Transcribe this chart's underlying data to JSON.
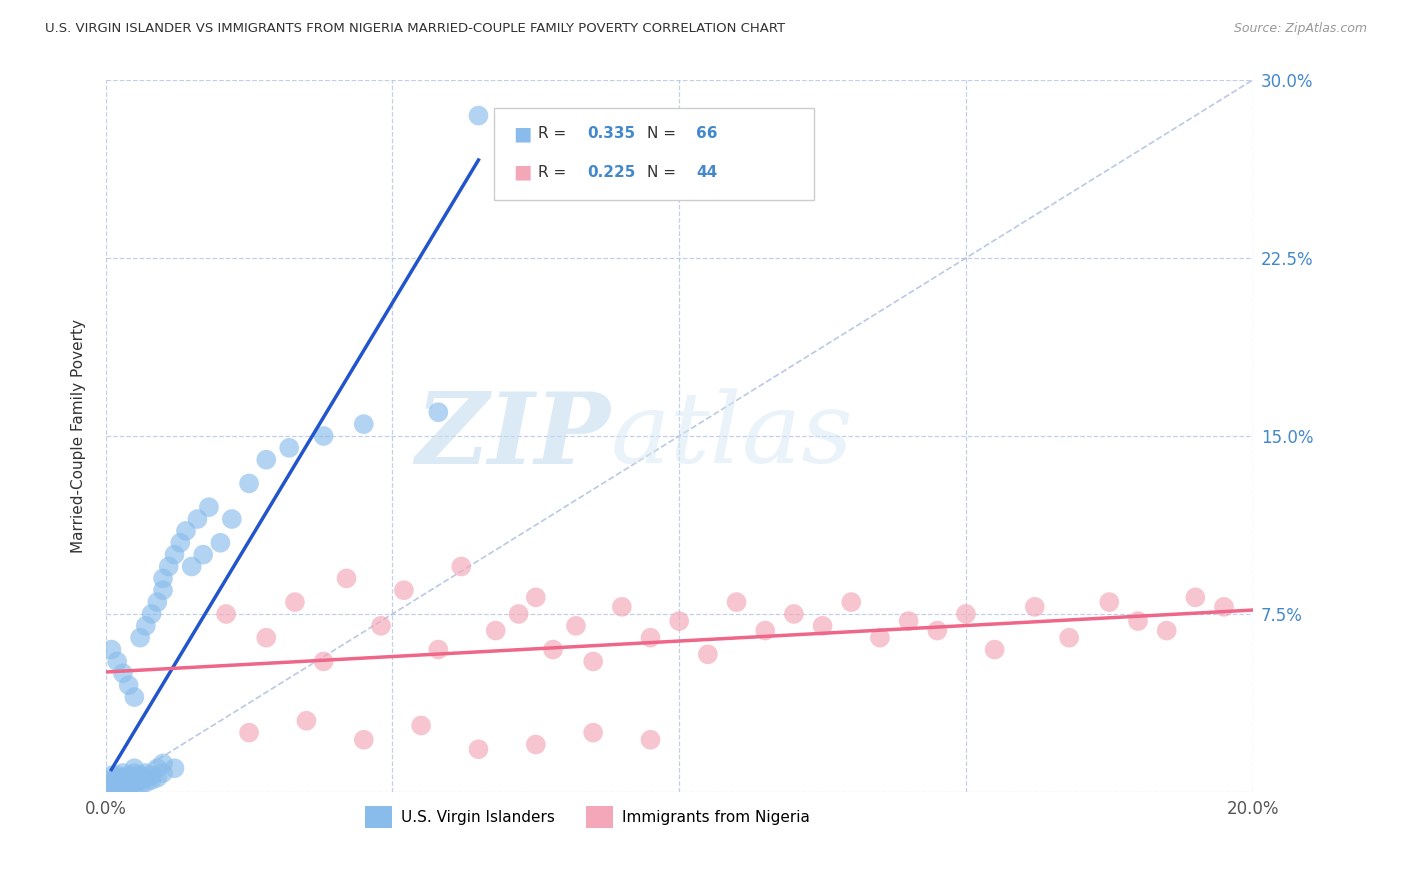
{
  "title": "U.S. VIRGIN ISLANDER VS IMMIGRANTS FROM NIGERIA MARRIED-COUPLE FAMILY POVERTY CORRELATION CHART",
  "source": "Source: ZipAtlas.com",
  "ylabel": "Married-Couple Family Poverty",
  "xlim": [
    0,
    0.2
  ],
  "ylim": [
    0,
    0.3
  ],
  "xticks": [
    0.0,
    0.05,
    0.1,
    0.15,
    0.2
  ],
  "xtick_labels": [
    "0.0%",
    "",
    "",
    "",
    "20.0%"
  ],
  "yticks": [
    0.0,
    0.075,
    0.15,
    0.225,
    0.3
  ],
  "ytick_labels_right": [
    "",
    "7.5%",
    "15.0%",
    "22.5%",
    "30.0%"
  ],
  "blue_R": 0.335,
  "blue_N": 66,
  "pink_R": 0.225,
  "pink_N": 44,
  "blue_color": "#89BCEB",
  "pink_color": "#F4A7B8",
  "blue_line_color": "#2255CC",
  "pink_line_color": "#EE6688",
  "legend_label_blue": "U.S. Virgin Islanders",
  "legend_label_pink": "Immigrants from Nigeria",
  "watermark_zip": "ZIP",
  "watermark_atlas": "atlas",
  "blue_x": [
    0.001,
    0.001,
    0.001,
    0.001,
    0.001,
    0.002,
    0.002,
    0.002,
    0.002,
    0.002,
    0.002,
    0.002,
    0.003,
    0.003,
    0.003,
    0.003,
    0.003,
    0.003,
    0.003,
    0.004,
    0.004,
    0.004,
    0.004,
    0.004,
    0.005,
    0.005,
    0.005,
    0.005,
    0.005,
    0.005,
    0.006,
    0.006,
    0.006,
    0.006,
    0.007,
    0.007,
    0.007,
    0.007,
    0.008,
    0.008,
    0.008,
    0.009,
    0.009,
    0.009,
    0.01,
    0.01,
    0.01,
    0.01,
    0.011,
    0.012,
    0.012,
    0.013,
    0.014,
    0.015,
    0.016,
    0.017,
    0.018,
    0.02,
    0.022,
    0.025,
    0.028,
    0.032,
    0.038,
    0.045,
    0.058,
    0.065
  ],
  "blue_y": [
    0.001,
    0.003,
    0.005,
    0.007,
    0.06,
    0.001,
    0.002,
    0.004,
    0.005,
    0.006,
    0.007,
    0.055,
    0.001,
    0.002,
    0.003,
    0.005,
    0.006,
    0.008,
    0.05,
    0.002,
    0.003,
    0.005,
    0.007,
    0.045,
    0.002,
    0.004,
    0.006,
    0.008,
    0.01,
    0.04,
    0.003,
    0.005,
    0.007,
    0.065,
    0.004,
    0.006,
    0.008,
    0.07,
    0.005,
    0.007,
    0.075,
    0.006,
    0.08,
    0.01,
    0.008,
    0.012,
    0.085,
    0.09,
    0.095,
    0.01,
    0.1,
    0.105,
    0.11,
    0.095,
    0.115,
    0.1,
    0.12,
    0.105,
    0.115,
    0.13,
    0.14,
    0.145,
    0.15,
    0.155,
    0.16,
    0.285
  ],
  "pink_x": [
    0.021,
    0.028,
    0.033,
    0.038,
    0.042,
    0.048,
    0.052,
    0.058,
    0.062,
    0.068,
    0.072,
    0.075,
    0.078,
    0.082,
    0.085,
    0.09,
    0.095,
    0.1,
    0.105,
    0.11,
    0.115,
    0.12,
    0.125,
    0.13,
    0.135,
    0.14,
    0.145,
    0.15,
    0.155,
    0.162,
    0.168,
    0.175,
    0.18,
    0.185,
    0.19,
    0.195,
    0.025,
    0.035,
    0.045,
    0.055,
    0.065,
    0.075,
    0.085,
    0.095
  ],
  "pink_y": [
    0.075,
    0.065,
    0.08,
    0.055,
    0.09,
    0.07,
    0.085,
    0.06,
    0.095,
    0.068,
    0.075,
    0.082,
    0.06,
    0.07,
    0.055,
    0.078,
    0.065,
    0.072,
    0.058,
    0.08,
    0.068,
    0.075,
    0.07,
    0.08,
    0.065,
    0.072,
    0.068,
    0.075,
    0.06,
    0.078,
    0.065,
    0.08,
    0.072,
    0.068,
    0.082,
    0.078,
    0.025,
    0.03,
    0.022,
    0.028,
    0.018,
    0.02,
    0.025,
    0.022
  ]
}
